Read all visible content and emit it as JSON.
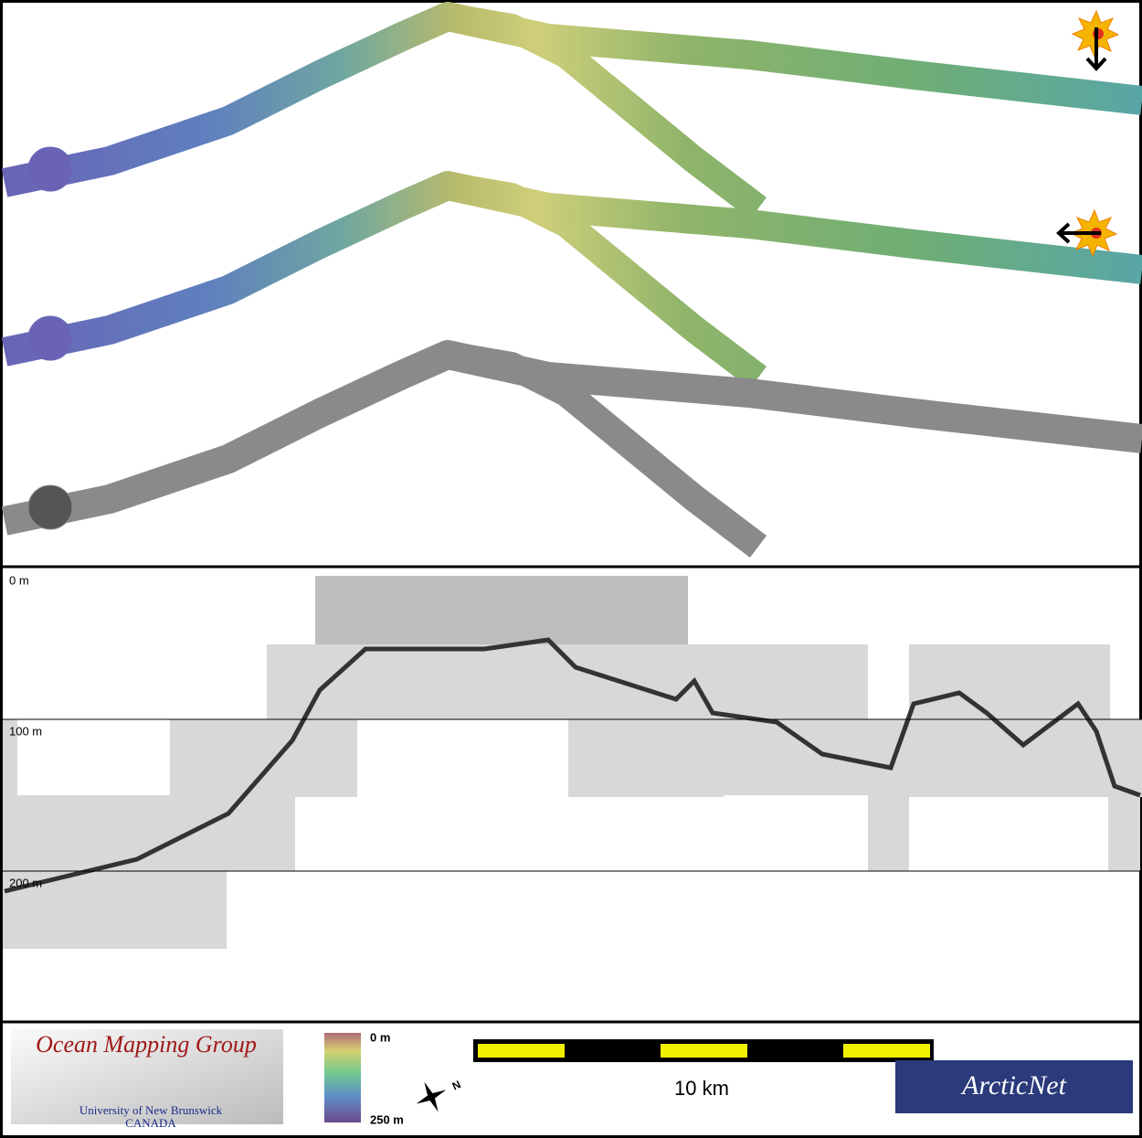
{
  "profile": {
    "depth_labels": [
      "0 m",
      "100 m",
      "200 m"
    ]
  },
  "footer": {
    "logo_left": {
      "title": "Ocean Mapping Group",
      "line1": "University of New Brunswick",
      "line2": "CANADA"
    },
    "colorbar": {
      "top": "0 m",
      "bottom": "250 m"
    },
    "compass": "N",
    "scale_bar": "10 km",
    "logo_right": "ArcticNet"
  }
}
